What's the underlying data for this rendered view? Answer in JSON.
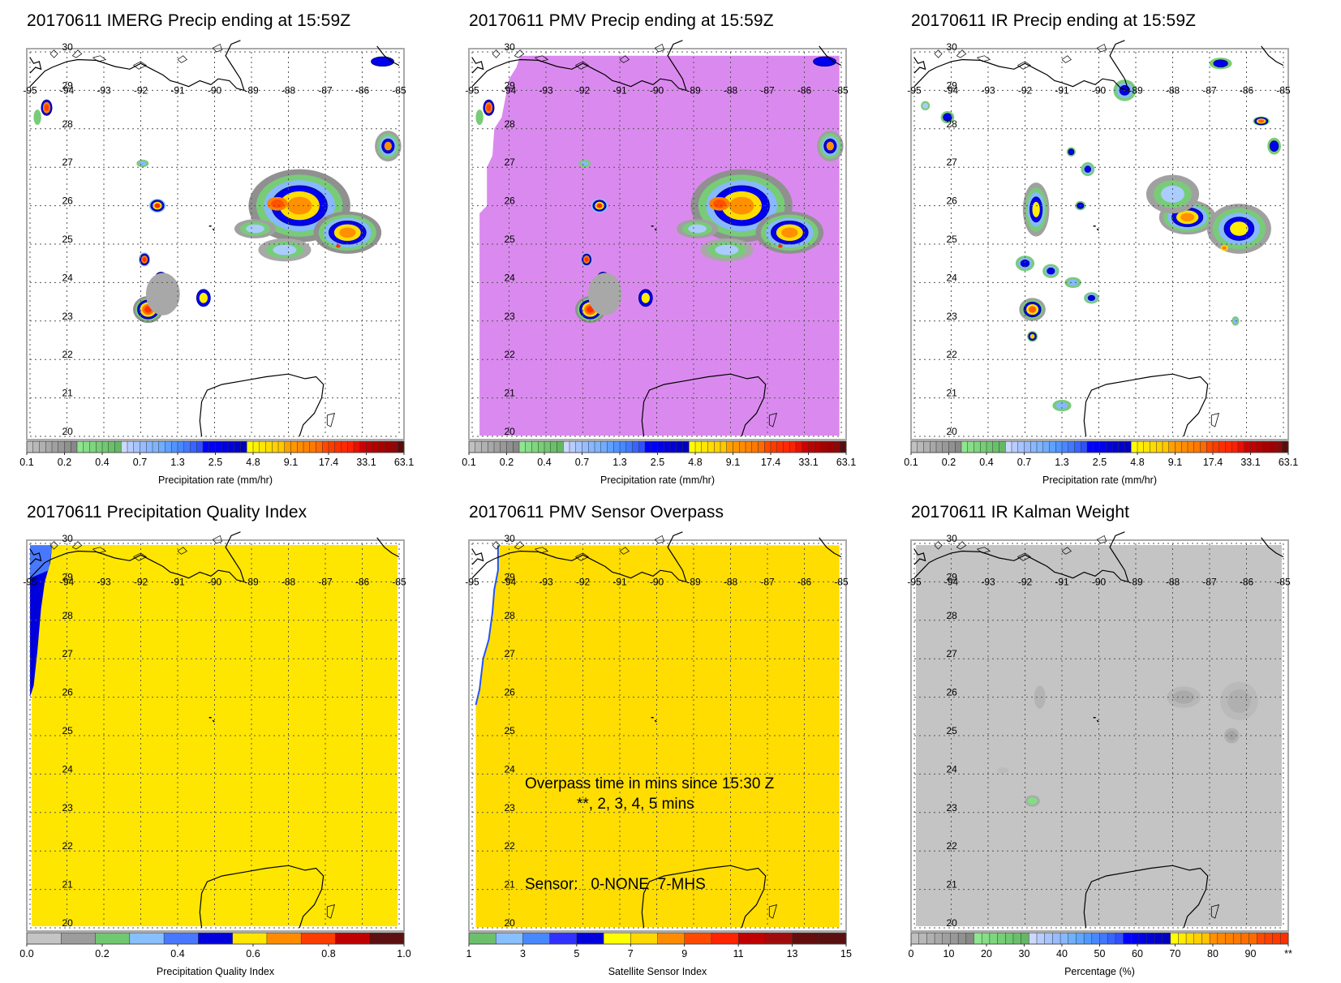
{
  "panels": [
    {
      "id": "imerg",
      "title": "20170611 IMERG Precip ending at 15:59Z",
      "background": "none",
      "colorbar": "precip",
      "colorbar_title": "Precipitation rate (mm/hr)"
    },
    {
      "id": "pmv",
      "title": "20170611 PMV Precip ending at 15:59Z",
      "background": "#da8aee",
      "colorbar": "precip",
      "colorbar_title": "Precipitation rate (mm/hr)"
    },
    {
      "id": "ir",
      "title": "20170611 IR Precip ending at 15:59Z",
      "background": "none",
      "colorbar": "precip",
      "colorbar_title": "Precipitation rate (mm/hr)"
    },
    {
      "id": "pqi",
      "title": "20170611 Precipitation Quality Index",
      "background": "#ffe600",
      "colorbar": "pqi",
      "colorbar_title": "Precipitation Quality Index"
    },
    {
      "id": "sensor",
      "title": "20170611 PMV Sensor Overpass",
      "background": "#ffdd00",
      "colorbar": "sensor",
      "colorbar_title": "Satellite Sensor Index",
      "annotation": {
        "line1": "Overpass time in mins since 15:30 Z",
        "line2": "**, 2, 3, 4, 5 mins",
        "line3": "Sensor:   0-NONE  7-MHS"
      }
    },
    {
      "id": "kalman",
      "title": "20170611 IR Kalman Weight",
      "background": "#c4c4c4",
      "colorbar": "percent",
      "colorbar_title": "Percentage (%)"
    }
  ],
  "map_axes": {
    "lon_ticks": [
      "-95",
      "-94",
      "-93",
      "-92",
      "-91",
      "-90",
      "-89",
      "-88",
      "-87",
      "-86",
      "-85"
    ],
    "lat_ticks": [
      "30",
      "29",
      "28",
      "27",
      "26",
      "25",
      "24",
      "23",
      "22",
      "21",
      "20"
    ],
    "lon_range": [
      -95,
      -85
    ],
    "lat_range": [
      20,
      30
    ]
  },
  "colorbars": {
    "precip": {
      "colors": [
        "#c0c0c0",
        "#b8b8b8",
        "#b0b0b0",
        "#a8a8a8",
        "#a0a0a0",
        "#989898",
        "#909090",
        "#888888",
        "#8ee68e",
        "#86de86",
        "#7ed67e",
        "#76ce76",
        "#70c870",
        "#6ac06a",
        "#64b864",
        "#ccd8ff",
        "#b8ccff",
        "#a8c4ff",
        "#98bcff",
        "#88b8ff",
        "#80b4ff",
        "#70acff",
        "#60a0ff",
        "#5094ff",
        "#4888ff",
        "#4078ff",
        "#3864ff",
        "#3050ff",
        "#0000ff",
        "#0000f4",
        "#0000ea",
        "#0000e0",
        "#0000d6",
        "#0000cc",
        "#0000c2",
        "#ffff00",
        "#fff000",
        "#ffe600",
        "#ffdc00",
        "#ffd200",
        "#ffc800",
        "#ffa000",
        "#ff9600",
        "#ff8c00",
        "#ff8200",
        "#ff7800",
        "#ff6a00",
        "#ff4800",
        "#ff3c00",
        "#ff3000",
        "#ff2800",
        "#ff2000",
        "#e81000",
        "#d00000",
        "#c00000",
        "#b40000",
        "#a80000",
        "#9c0000",
        "#8a0a0a",
        "#5a0c0c"
      ],
      "labels": [
        "0.1",
        "0.2",
        "0.4",
        "0.7",
        "1.3",
        "2.5",
        "4.8",
        "9.1",
        "17.4",
        "33.1",
        "63.1"
      ]
    },
    "pqi": {
      "colors": [
        "#c4c4c4",
        "#9c9c9c",
        "#70c870",
        "#88c0ff",
        "#4878ff",
        "#0000dd",
        "#ffe600",
        "#ff8c00",
        "#ff3c00",
        "#c00000",
        "#5c1010"
      ],
      "labels": [
        "0.0",
        "0.2",
        "0.4",
        "0.6",
        "0.8",
        "1.0"
      ]
    },
    "sensor": {
      "colors": [
        "#6cc06c",
        "#88c0ff",
        "#4888ff",
        "#3030ff",
        "#0000dd",
        "#ffff00",
        "#ffd800",
        "#ff8c00",
        "#ff4a00",
        "#ff2400",
        "#c00000",
        "#a00c0c",
        "#640e0e",
        "#5a1010"
      ],
      "labels": [
        "1",
        "3",
        "5",
        "7",
        "9",
        "11",
        "13",
        "15"
      ]
    },
    "percent": {
      "colors": [
        "#c0c0c0",
        "#b8b8b8",
        "#b0b0b0",
        "#a8a8a8",
        "#a0a0a0",
        "#989898",
        "#909090",
        "#888888",
        "#8ee68e",
        "#86de86",
        "#7ed67e",
        "#76ce76",
        "#70c870",
        "#6ac06a",
        "#64b864",
        "#ccd8ff",
        "#b8ccff",
        "#a8c4ff",
        "#98bcff",
        "#88b8ff",
        "#70b0ff",
        "#60a8ff",
        "#5098ff",
        "#4888ff",
        "#4078ff",
        "#3864ff",
        "#3050ff",
        "#0000ff",
        "#0000f0",
        "#0000e4",
        "#0000d8",
        "#0000cc",
        "#0000c0",
        "#ffff00",
        "#ffec00",
        "#ffdc00",
        "#ffd000",
        "#ffc400",
        "#ff9000",
        "#ff8800",
        "#ff8000",
        "#ff7800",
        "#ff7000",
        "#ff6a00",
        "#ff4800",
        "#ff4000",
        "#ff3800",
        "#ff3000"
      ],
      "labels": [
        "0",
        "10",
        "20",
        "30",
        "40",
        "50",
        "60",
        "70",
        "80",
        "90",
        "**"
      ]
    }
  }
}
